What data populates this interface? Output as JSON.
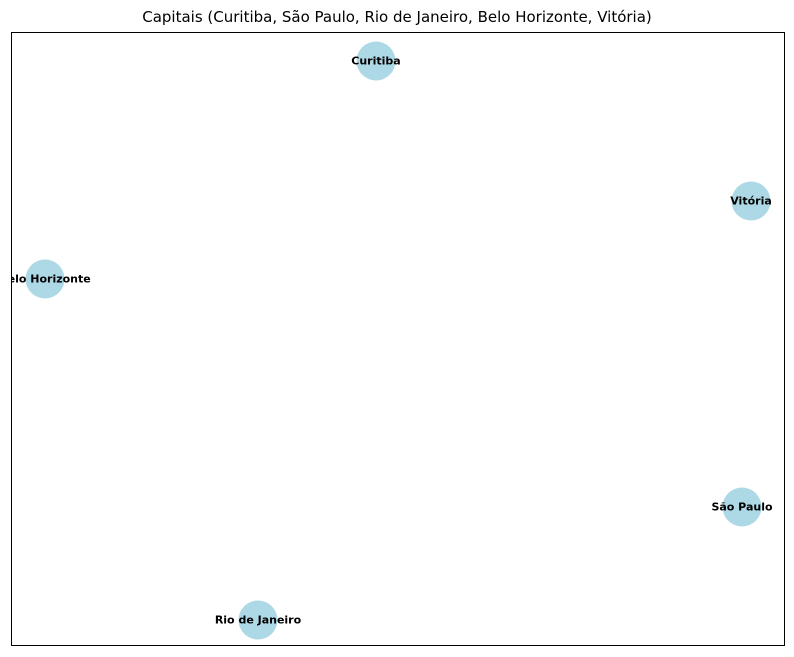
{
  "title": "Capitais (Curitiba, São Paulo, Rio de Janeiro, Belo Horizonte, Vitória)",
  "node_color": "#add8e6",
  "nodes": [
    {
      "label": "Curitiba"
    },
    {
      "label": "Vitória"
    },
    {
      "label": "Belo Horizonte"
    },
    {
      "label": "São Paulo"
    },
    {
      "label": "Rio de Janeiro"
    }
  ],
  "edges": []
}
